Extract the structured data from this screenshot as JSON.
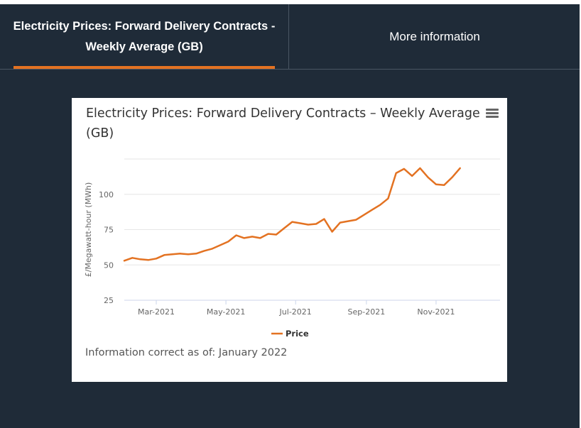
{
  "tabs": [
    {
      "label": "Electricity Prices: Forward Delivery Contracts - Weekly Average (GB)",
      "active": true
    },
    {
      "label": "More information",
      "active": false
    }
  ],
  "colors": {
    "background": "#1f2b38",
    "accent": "#e37222",
    "card": "#ffffff"
  },
  "chart": {
    "menu_icon": "hamburger-menu-icon",
    "note": "Information correct as of: January 2022"
  },
  "chart_data": {
    "type": "line",
    "title": "Electricity Prices: Forward Delivery Contracts – Weekly Average (GB)",
    "xlabel": "",
    "ylabel": "£/Megawatt-hour (MWh)",
    "yticks": [
      25,
      50,
      75,
      100
    ],
    "ylim": [
      25,
      125
    ],
    "xlim": [
      "2021-02-01",
      "2021-12-27"
    ],
    "xticks": [
      {
        "date": "2021-03-01",
        "label": "Mar-2021"
      },
      {
        "date": "2021-05-01",
        "label": "May-2021"
      },
      {
        "date": "2021-07-01",
        "label": "Jul-2021"
      },
      {
        "date": "2021-09-01",
        "label": "Sep-2021"
      },
      {
        "date": "2021-11-01",
        "label": "Nov-2021"
      }
    ],
    "grid": true,
    "legend": "bottom-center",
    "series": [
      {
        "name": "Price",
        "color": "#e37222",
        "points": [
          [
            "2021-02-01",
            53
          ],
          [
            "2021-02-08",
            55
          ],
          [
            "2021-02-15",
            54
          ],
          [
            "2021-02-22",
            53.5
          ],
          [
            "2021-03-01",
            54.5
          ],
          [
            "2021-03-08",
            57
          ],
          [
            "2021-03-15",
            57.5
          ],
          [
            "2021-03-22",
            58
          ],
          [
            "2021-03-29",
            57.5
          ],
          [
            "2021-04-05",
            58
          ],
          [
            "2021-04-12",
            60
          ],
          [
            "2021-04-19",
            61.5
          ],
          [
            "2021-04-26",
            64
          ],
          [
            "2021-05-03",
            66.5
          ],
          [
            "2021-05-10",
            71
          ],
          [
            "2021-05-17",
            69
          ],
          [
            "2021-05-24",
            70
          ],
          [
            "2021-05-31",
            69
          ],
          [
            "2021-06-07",
            72
          ],
          [
            "2021-06-14",
            71.5
          ],
          [
            "2021-06-21",
            76
          ],
          [
            "2021-06-28",
            80.5
          ],
          [
            "2021-07-05",
            79.5
          ],
          [
            "2021-07-12",
            78.5
          ],
          [
            "2021-07-19",
            79
          ],
          [
            "2021-07-26",
            82.5
          ],
          [
            "2021-08-02",
            73.5
          ],
          [
            "2021-08-09",
            80
          ],
          [
            "2021-08-16",
            81
          ],
          [
            "2021-08-23",
            82
          ],
          [
            "2021-08-30",
            85.5
          ],
          [
            "2021-09-06",
            89
          ],
          [
            "2021-09-13",
            92.5
          ],
          [
            "2021-09-20",
            97
          ],
          [
            "2021-09-27",
            115
          ],
          [
            "2021-10-04",
            118
          ],
          [
            "2021-10-11",
            113
          ],
          [
            "2021-10-18",
            118.5
          ],
          [
            "2021-10-25",
            112
          ],
          [
            "2021-11-01",
            107
          ],
          [
            "2021-11-08",
            106.5
          ],
          [
            "2021-11-15",
            112
          ],
          [
            "2021-11-22",
            118.5
          ]
        ]
      }
    ]
  }
}
